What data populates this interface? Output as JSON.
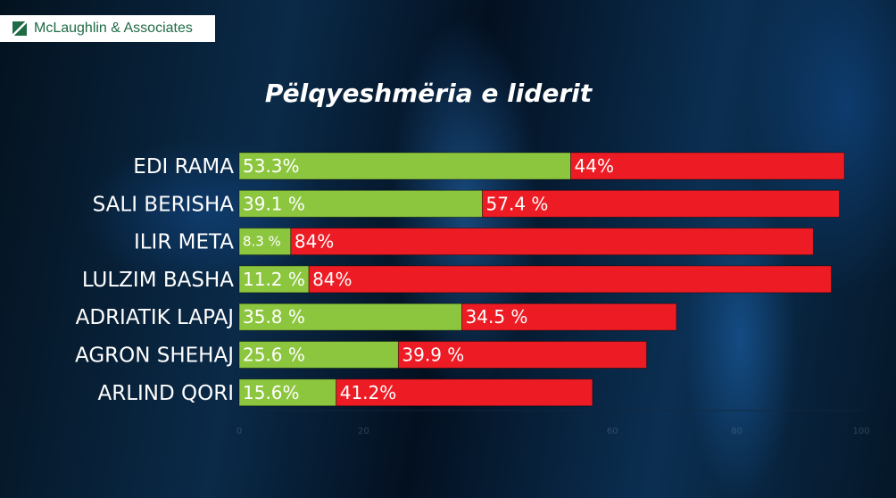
{
  "logo": {
    "text": "McLaughlin & Associates"
  },
  "chart_data": {
    "type": "bar",
    "orientation": "horizontal",
    "stacked": true,
    "title": "Pëlqyeshmëria e liderit",
    "categories": [
      "EDI RAMA",
      "SALI BERISHA",
      "ILIR META",
      "LULZIM BASHA",
      "ADRIATIK LAPAJ",
      "AGRON SHEHAJ",
      "ARLIND QORI"
    ],
    "series": [
      {
        "color": "#8cc63f",
        "values": [
          53.3,
          39.1,
          8.3,
          11.2,
          35.8,
          25.6,
          15.6
        ],
        "labels": [
          "53.3%",
          "39.1 %",
          "8.3 %",
          "11.2 %",
          "35.8 %",
          "25.6 %",
          "15.6%"
        ]
      },
      {
        "color": "#ed1c24",
        "values": [
          44,
          57.4,
          84,
          84,
          34.5,
          39.9,
          41.2
        ],
        "labels": [
          "44%",
          "57.4 %",
          "84%",
          "84%",
          "34.5 %",
          "39.9 %",
          "41.2%"
        ]
      }
    ],
    "xlim": [
      0,
      100
    ],
    "xticks": [
      "0",
      "20",
      "60",
      "80",
      "100"
    ],
    "grid": false,
    "legend": "none"
  }
}
